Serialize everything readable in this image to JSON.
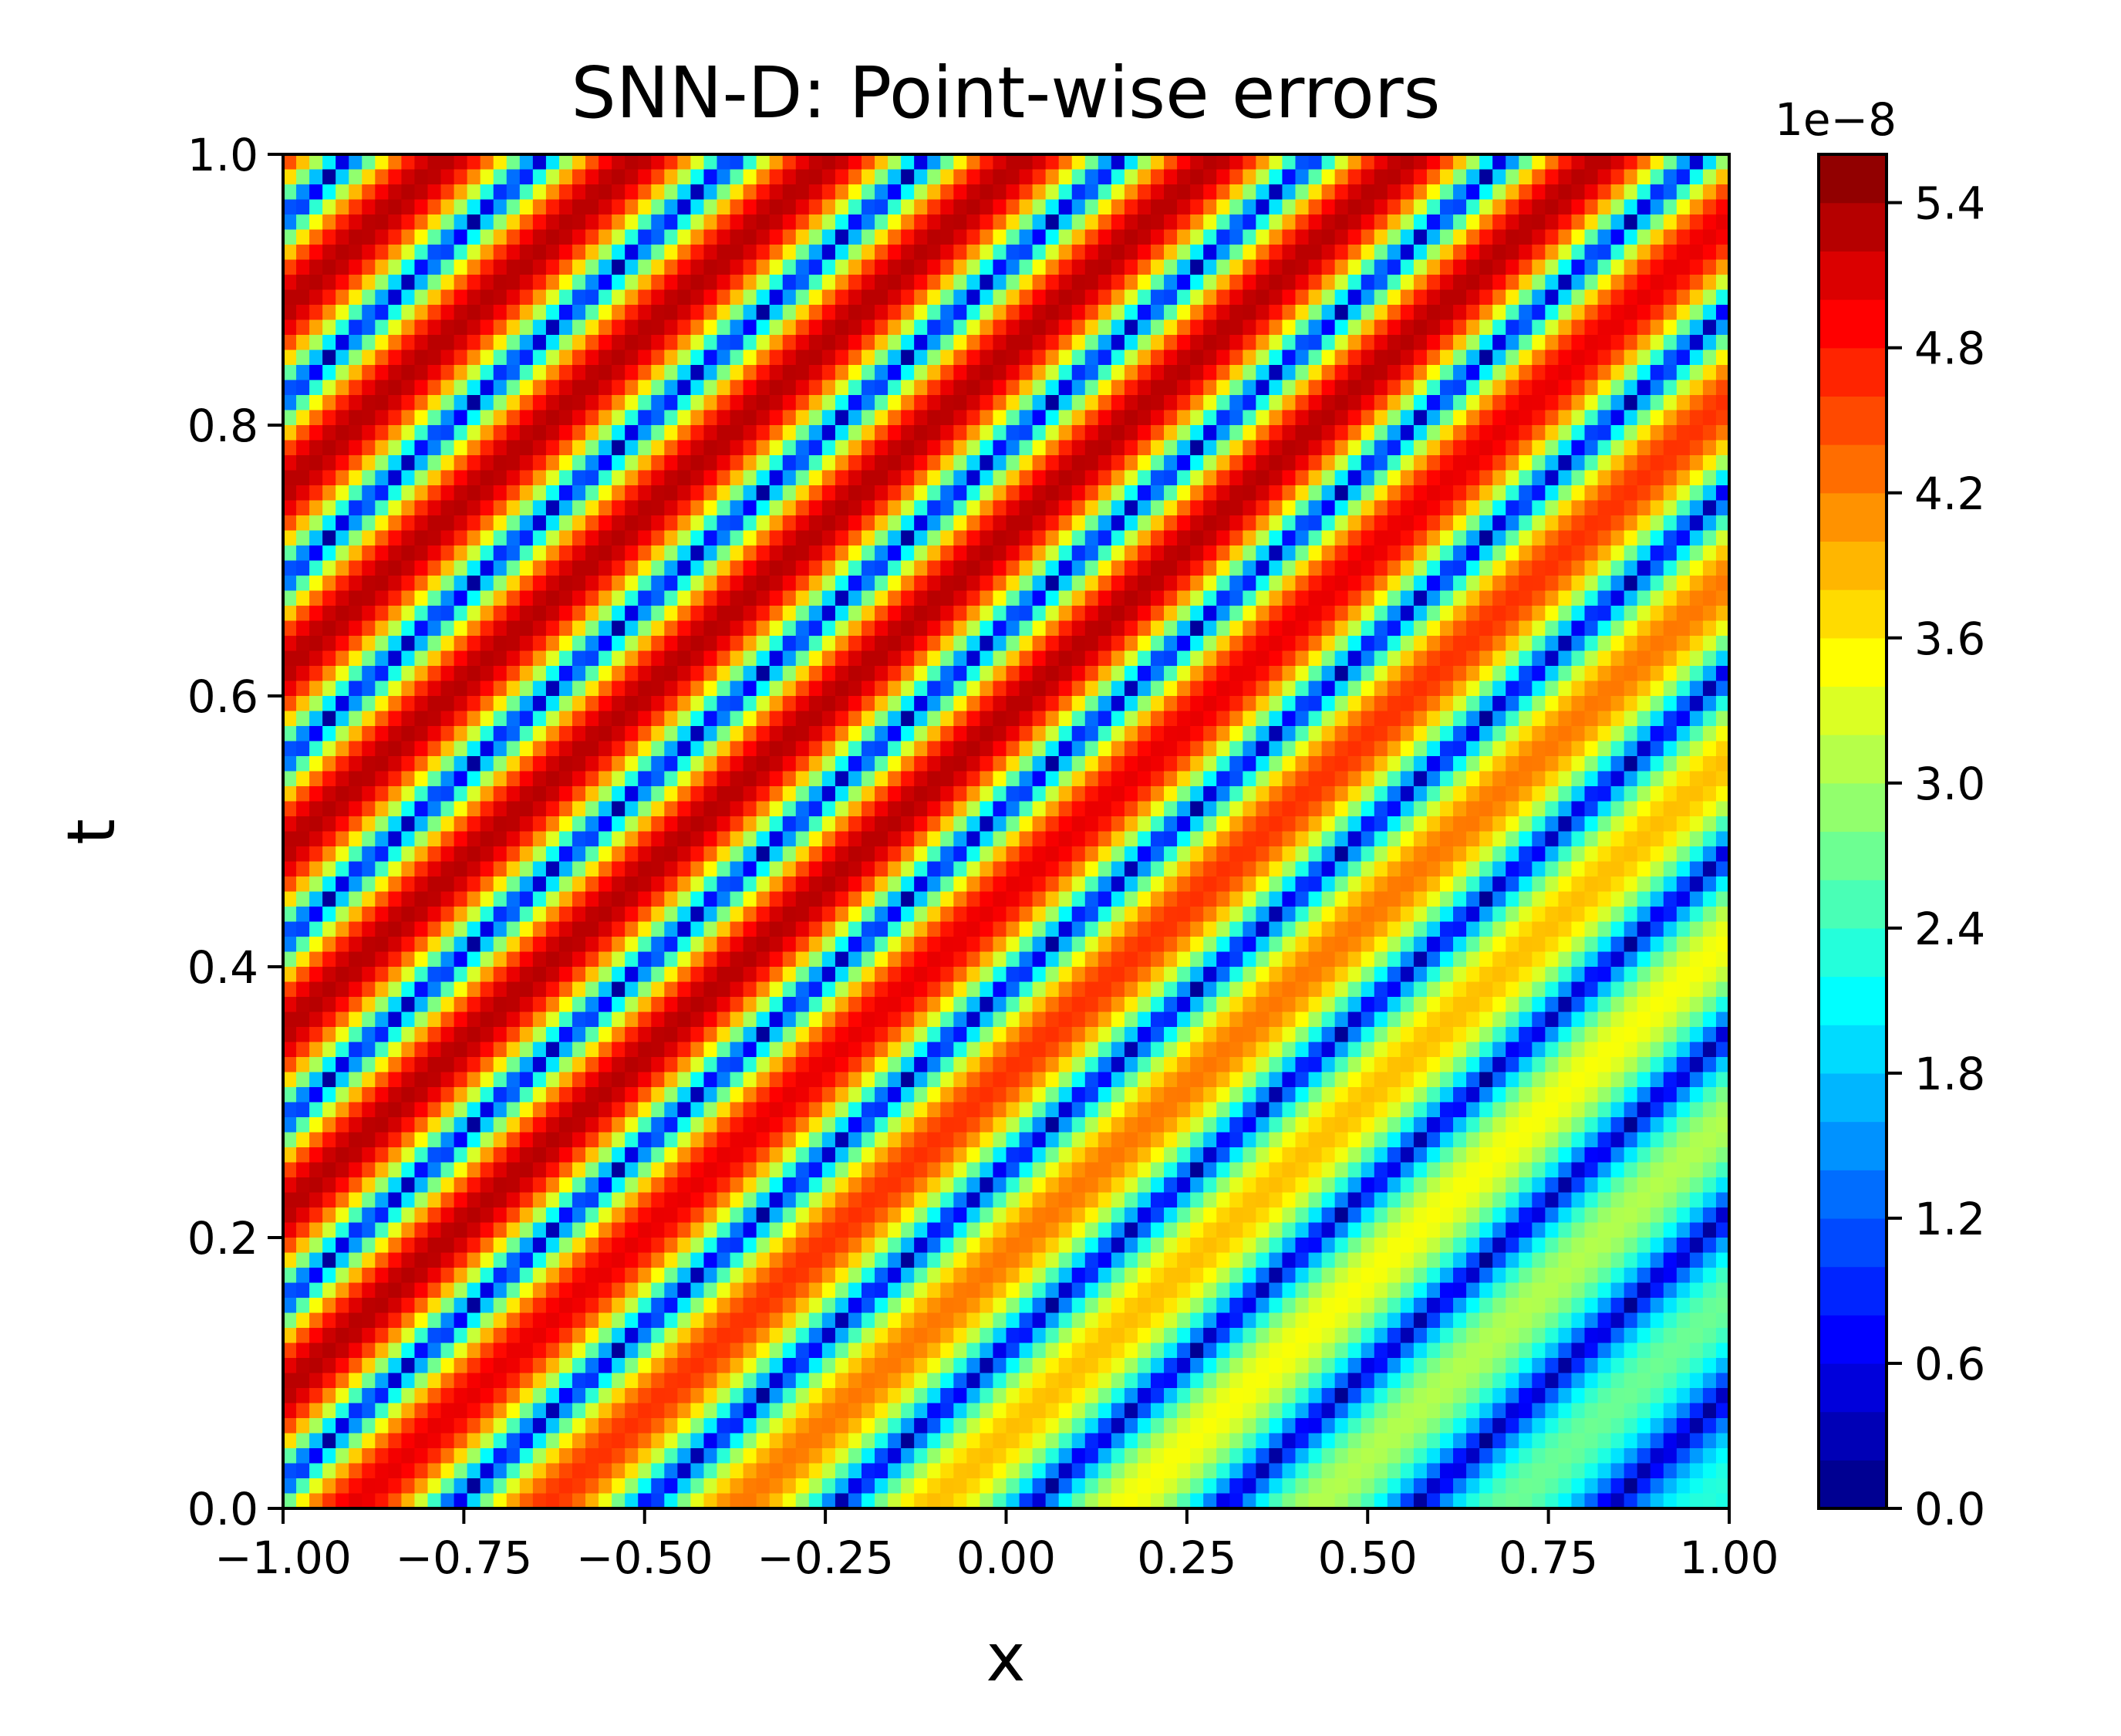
{
  "chart_data": {
    "type": "heatmap",
    "title": "SNN-D: Point-wise errors",
    "xlabel": "x",
    "ylabel": "t",
    "xlim": [
      -1.0,
      1.0
    ],
    "ylim": [
      0.0,
      1.0
    ],
    "x_ticks": [
      "−1.00",
      "−0.75",
      "−0.50",
      "−0.25",
      "0.00",
      "0.25",
      "0.50",
      "0.75",
      "1.00"
    ],
    "x_tick_values": [
      -1.0,
      -0.75,
      -0.5,
      -0.25,
      0.0,
      0.25,
      0.5,
      0.75,
      1.0
    ],
    "y_ticks": [
      "0.0",
      "0.2",
      "0.4",
      "0.6",
      "0.8",
      "1.0"
    ],
    "y_tick_values": [
      0.0,
      0.2,
      0.4,
      0.6,
      0.8,
      1.0
    ],
    "colorbar": {
      "colormap": "jet",
      "range": [
        0.0,
        5.6
      ],
      "scale_label": "1e−8",
      "ticks": [
        "0.0",
        "0.6",
        "1.2",
        "1.8",
        "2.4",
        "3.0",
        "3.6",
        "4.2",
        "4.8",
        "5.4"
      ],
      "tick_values": [
        0.0,
        0.6,
        1.2,
        1.8,
        2.4,
        3.0,
        3.6,
        4.2,
        4.8,
        5.4
      ]
    },
    "grid": false,
    "pattern": "diagonal bands of error along x - t = const, largest (red, ~5.2e-8) in the upper-left region, smallest (dark blue, ~0) bands between, mostly ~1e-8 in the lower-right region"
  }
}
